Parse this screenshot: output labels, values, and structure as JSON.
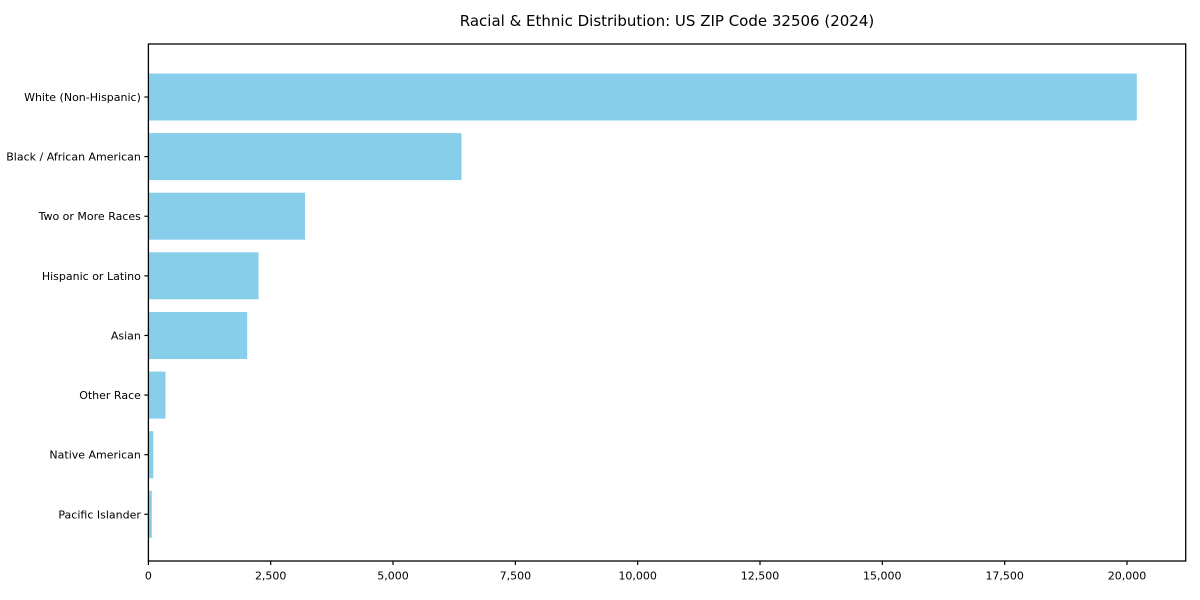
{
  "chart_data": {
    "type": "bar",
    "orientation": "horizontal",
    "title": "Racial & Ethnic Distribution: US ZIP Code 32506 (2024)",
    "categories": [
      "White (Non-Hispanic)",
      "Black / African American",
      "Two or More Races",
      "Hispanic or Latino",
      "Asian",
      "Other Race",
      "Native American",
      "Pacific Islander"
    ],
    "values": [
      20200,
      6400,
      3200,
      2250,
      2020,
      350,
      100,
      70
    ],
    "xlabel": "",
    "ylabel": "",
    "xlim": [
      0,
      21200
    ],
    "x_ticks": [
      0,
      2500,
      5000,
      7500,
      10000,
      12500,
      15000,
      17500,
      20000
    ],
    "x_tick_labels": [
      "0",
      "2,500",
      "5,000",
      "7,500",
      "10,000",
      "12,500",
      "15,000",
      "17,500",
      "20,000"
    ],
    "bar_color": "#87CEEB",
    "axis_color": "#000000",
    "text_color": "#000000",
    "grid": false,
    "legend": null
  }
}
